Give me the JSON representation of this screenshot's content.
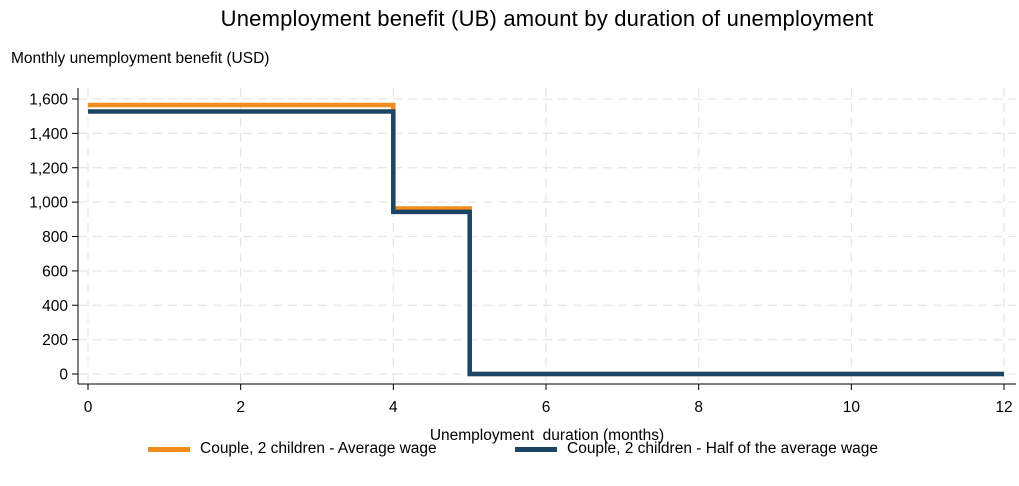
{
  "chart_data": {
    "type": "line",
    "title": "Unemployment benefit (UB) amount by duration of unemployment",
    "ylabel": "Monthly unemployment benefit (USD)",
    "xlabel": "Unemployment  duration (months)",
    "xlim": [
      0,
      12
    ],
    "ylim": [
      0,
      1600
    ],
    "x_ticks": [
      "0",
      "2",
      "4",
      "6",
      "8",
      "10",
      "12"
    ],
    "y_ticks": [
      "0",
      "200",
      "400",
      "600",
      "800",
      "1,000",
      "1,200",
      "1,400",
      "1,600"
    ],
    "grid": true,
    "legend_position": "bottom",
    "series": [
      {
        "name": "Couple, 2 children - Average wage",
        "color": "#f28c1e",
        "step": true,
        "x": [
          0,
          4,
          4,
          5,
          5,
          12
        ],
        "y": [
          1565,
          1565,
          963,
          963,
          0,
          0
        ]
      },
      {
        "name": "Couple, 2 children - Half of the average wage",
        "color": "#1c4563",
        "step": true,
        "x": [
          0,
          4,
          4,
          5,
          5,
          12
        ],
        "y": [
          1527,
          1527,
          943,
          943,
          0,
          0
        ]
      }
    ]
  }
}
